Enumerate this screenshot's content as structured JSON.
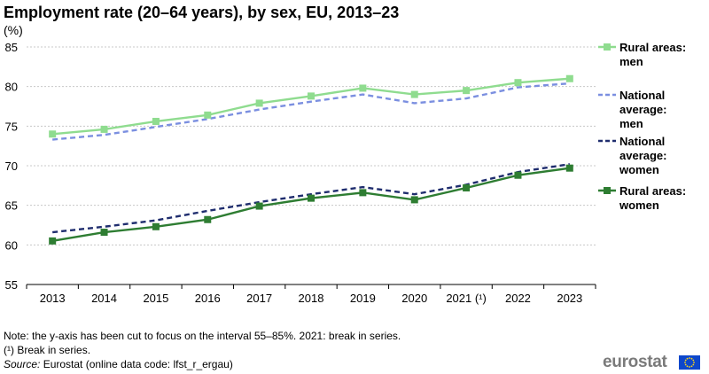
{
  "header": {
    "title": "Employment rate (20–64 years), by sex, EU, 2013–23",
    "unit": "(%)"
  },
  "chart_data": {
    "type": "line",
    "title": "Employment rate (20–64 years), by sex, EU, 2013–23",
    "ylabel": "(%)",
    "xlabel": "",
    "ylim": [
      55,
      85
    ],
    "yticks": [
      55,
      60,
      65,
      70,
      75,
      80,
      85
    ],
    "grid": true,
    "legend_position": "right",
    "categories": [
      "2013",
      "2014",
      "2015",
      "2016",
      "2017",
      "2018",
      "2019",
      "2020",
      "2021 (¹)",
      "2022",
      "2023"
    ],
    "series": [
      {
        "name": "Rural areas: men",
        "color": "#8fdc8f",
        "style": "solid",
        "marker": "square",
        "values": [
          74.0,
          74.6,
          75.6,
          76.4,
          77.9,
          78.8,
          79.8,
          79.0,
          79.5,
          80.5,
          81.0
        ]
      },
      {
        "name": "National average: men",
        "color": "#7b8fe0",
        "style": "dashed",
        "marker": "none",
        "values": [
          73.3,
          73.9,
          74.9,
          75.9,
          77.1,
          78.1,
          79.0,
          77.9,
          78.5,
          79.9,
          80.4
        ]
      },
      {
        "name": "National average: women",
        "color": "#1f2d6e",
        "style": "dashed",
        "marker": "none",
        "values": [
          61.6,
          62.3,
          63.1,
          64.3,
          65.4,
          66.4,
          67.3,
          66.4,
          67.6,
          69.2,
          70.2
        ]
      },
      {
        "name": "Rural areas: women",
        "color": "#2e7d32",
        "style": "solid",
        "marker": "square",
        "values": [
          60.5,
          61.6,
          62.3,
          63.2,
          64.9,
          65.9,
          66.6,
          65.7,
          67.2,
          68.8,
          69.7
        ]
      }
    ]
  },
  "legend": [
    {
      "lines": [
        "Rural areas:",
        "men"
      ]
    },
    {
      "lines": [
        "National",
        "average:",
        "men"
      ]
    },
    {
      "lines": [
        "National",
        "average:",
        "women"
      ]
    },
    {
      "lines": [
        "Rural areas:",
        "women"
      ]
    }
  ],
  "footer": {
    "note": "Note: the y-axis has been cut to focus on the interval 55–85%. 2021: break in series.",
    "footnote": "(¹) Break in series.",
    "source_label": "Source:",
    "source_text": " Eurostat (online data code: lfst_r_ergau)",
    "logo_text": "eurostat"
  }
}
